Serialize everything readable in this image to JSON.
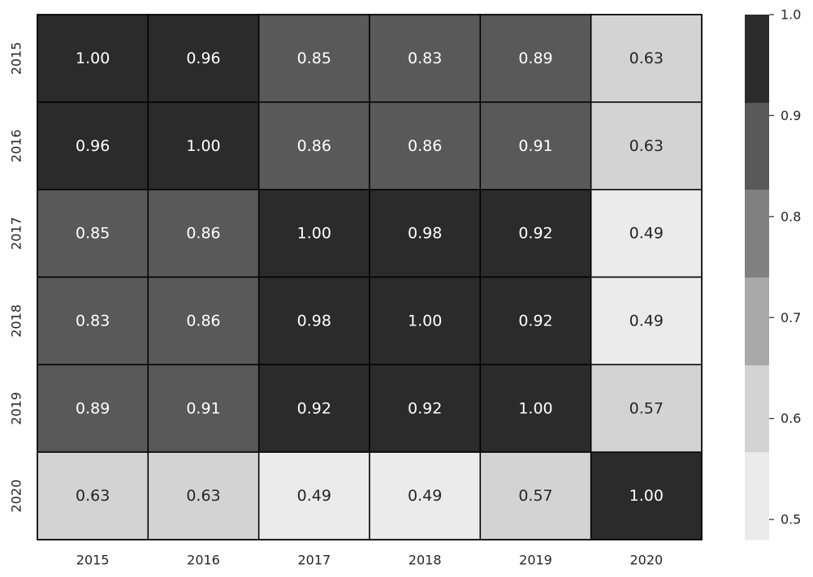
{
  "chart_data": {
    "type": "heatmap",
    "title": "",
    "xlabel": "",
    "ylabel": "",
    "x_categories": [
      "2015",
      "2016",
      "2017",
      "2018",
      "2019",
      "2020"
    ],
    "y_categories": [
      "2015",
      "2016",
      "2017",
      "2018",
      "2019",
      "2020"
    ],
    "values": [
      [
        1.0,
        0.96,
        0.85,
        0.83,
        0.89,
        0.63
      ],
      [
        0.96,
        1.0,
        0.86,
        0.86,
        0.91,
        0.63
      ],
      [
        0.85,
        0.86,
        1.0,
        0.98,
        0.92,
        0.49
      ],
      [
        0.83,
        0.86,
        0.98,
        1.0,
        0.92,
        0.49
      ],
      [
        0.89,
        0.91,
        0.92,
        0.92,
        1.0,
        0.57
      ],
      [
        0.63,
        0.63,
        0.49,
        0.49,
        0.57,
        1.0
      ]
    ],
    "value_format_decimals": 2,
    "color_range": [
      0.48,
      1.0
    ],
    "color_bins": [
      {
        "min": 0.48,
        "max": 0.567,
        "color": "#ebebeb"
      },
      {
        "min": 0.567,
        "max": 0.653,
        "color": "#d3d3d3"
      },
      {
        "min": 0.653,
        "max": 0.74,
        "color": "#a9a9a9"
      },
      {
        "min": 0.74,
        "max": 0.827,
        "color": "#808080"
      },
      {
        "min": 0.827,
        "max": 0.913,
        "color": "#595959"
      },
      {
        "min": 0.913,
        "max": 1.0,
        "color": "#2b2b2b"
      }
    ],
    "colorbar_ticks": [
      "0.5",
      "0.6",
      "0.7",
      "0.8",
      "0.9",
      "1.0"
    ],
    "cell_border_color": "#000000",
    "label_color_dark_bg": "#ffffff",
    "label_color_light_bg": "#262626",
    "grid": false,
    "legend": "colorbar-right"
  }
}
